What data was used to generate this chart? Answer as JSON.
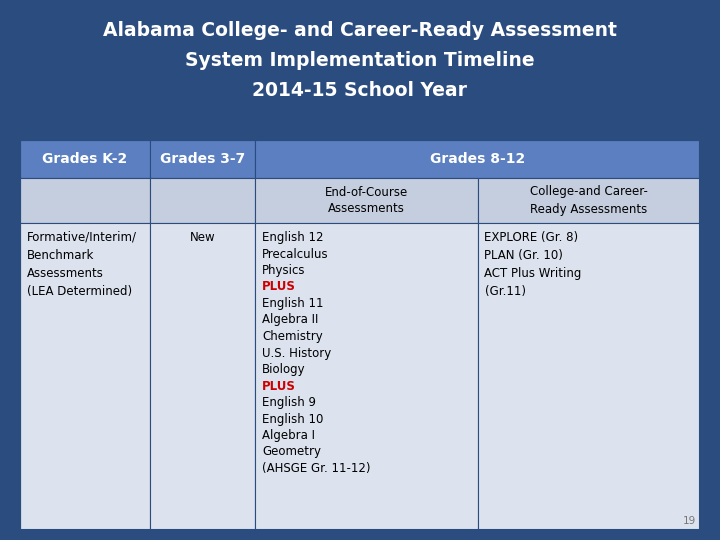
{
  "title_line1": "Alabama College- and Career-Ready Assessment",
  "title_line2": "System Implementation Timeline",
  "title_line3": "2014-15 School Year",
  "title_bg": "#2B4C7E",
  "title_color": "#FFFFFF",
  "header_bg": "#5B7FC0",
  "header_color": "#FFFFFF",
  "subheader_bg": "#C5CEDE",
  "data_bg": "#DCE2EE",
  "border_color": "#2B4C7E",
  "col_headers": [
    "Grades K-2",
    "Grades 3-7",
    "Grades 8-12"
  ],
  "subheaders": [
    "End-of-Course\nAssessments",
    "College-and Career-\nReady Assessments"
  ],
  "col_k2_main": "Formative/Interim/\nBenchmark\nAssessments\n(LEA Determined)",
  "col_37_main": "New",
  "col_812_eoc": [
    "English 12",
    "Precalculus",
    "Physics",
    "PLUS",
    "English 11",
    "Algebra II",
    "Chemistry",
    "U.S. History",
    "Biology",
    "PLUS",
    "English 9",
    "English 10",
    "Algebra I",
    "Geometry",
    "(AHSGE Gr. 11-12)"
  ],
  "col_812_ccr": "EXPLORE (Gr. 8)\nPLAN (Gr. 10)\nACT Plus Writing\n(Gr.11)",
  "plus_color": "#CC0000",
  "text_color": "#000000",
  "page_num": "19",
  "outer_bg": "#2B4C7E",
  "title_fontsize": 13.5,
  "header_fontsize": 10,
  "cell_fontsize": 8.5
}
